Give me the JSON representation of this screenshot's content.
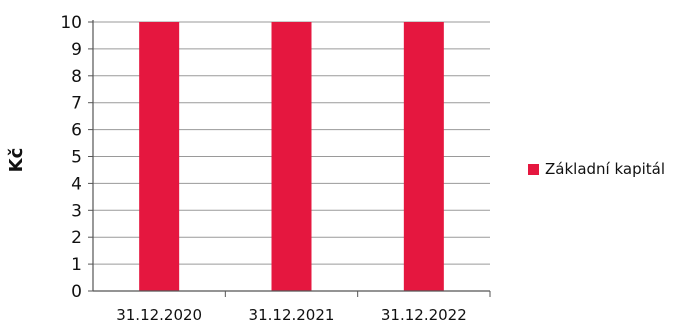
{
  "chart_data": {
    "type": "bar",
    "categories": [
      "31.12.2020",
      "31.12.2021",
      "31.12.2022"
    ],
    "series": [
      {
        "name": "Základní kapitál",
        "values": [
          10,
          10,
          10
        ],
        "color": "#e5173f"
      }
    ],
    "ylabel": "Kč",
    "xlabel": "",
    "ylim": [
      0,
      10
    ],
    "yticks": [
      "0",
      "1",
      "2",
      "3",
      "4",
      "5",
      "6",
      "7",
      "8",
      "9",
      "10"
    ],
    "grid": true,
    "legend_position": "right"
  }
}
